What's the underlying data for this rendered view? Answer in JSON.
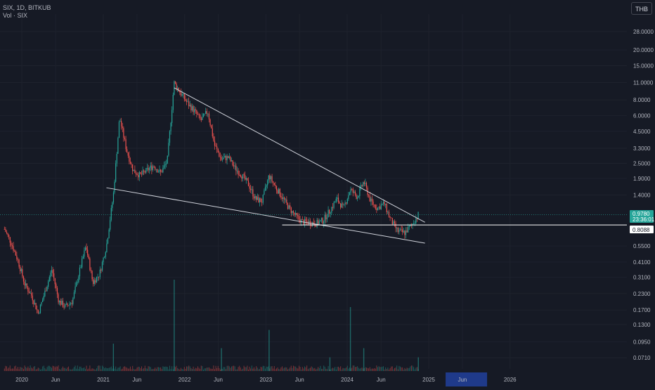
{
  "legend": {
    "symbol_line": "SIX, 1D, BITKUB",
    "volume_line": "Vol · SIX"
  },
  "currency_button": "THB",
  "price_labels": {
    "last_price": "0.9780",
    "countdown": "23:36:01",
    "line_level": "0.8088"
  },
  "colors": {
    "background": "#161a25",
    "up": "#26a69a",
    "down": "#ef5350",
    "grid": "#1e222d",
    "trendline": "#d1d4dc",
    "last_price_badge": "#26a69a"
  },
  "chart_data": {
    "type": "candlestick",
    "symbol": "SIX",
    "interval": "1D",
    "exchange": "BITKUB",
    "y_scale": "log",
    "ylim": [
      0.062,
      40
    ],
    "y_ticks": [
      "0.0710",
      "0.0950",
      "0.1300",
      "0.1700",
      "0.2300",
      "0.3100",
      "0.4100",
      "0.5500",
      "1.4000",
      "1.9000",
      "2.5000",
      "3.3000",
      "4.5000",
      "6.0000",
      "8.0000",
      "11.0000",
      "15.0000",
      "20.0000",
      "28.0000"
    ],
    "y_tick_values": [
      0.071,
      0.095,
      0.13,
      0.17,
      0.23,
      0.31,
      0.41,
      0.55,
      1.4,
      1.9,
      2.5,
      3.3,
      4.5,
      6.0,
      8.0,
      11.0,
      15.0,
      20.0,
      28.0
    ],
    "x_ticks": [
      "2020",
      "Jun",
      "2021",
      "Jun",
      "2022",
      "Jun",
      "2023",
      "Jun",
      "2024",
      "Jun",
      "2025",
      "Jun",
      "2026"
    ],
    "x_tick_dates": [
      "2020-01",
      "2020-06",
      "2021-01",
      "2021-06",
      "2022-01",
      "2022-06",
      "2023-01",
      "2023-06",
      "2024-01",
      "2024-06",
      "2025-01",
      "2025-06",
      "2026-01"
    ],
    "highlighted_x_range": [
      "2025-01",
      "2025-09"
    ],
    "price_path": [
      [
        "2019-10",
        0.75
      ],
      [
        "2019-11",
        0.58
      ],
      [
        "2019-12",
        0.42
      ],
      [
        "2020-01",
        0.27
      ],
      [
        "2020-02",
        0.22
      ],
      [
        "2020-03",
        0.16
      ],
      [
        "2020-04",
        0.24
      ],
      [
        "2020-05",
        0.36
      ],
      [
        "2020-06",
        0.2
      ],
      [
        "2020-07",
        0.18
      ],
      [
        "2020-08",
        0.2
      ],
      [
        "2020-09",
        0.34
      ],
      [
        "2020-10",
        0.55
      ],
      [
        "2020-11",
        0.28
      ],
      [
        "2020-12",
        0.33
      ],
      [
        "2021-01",
        0.55
      ],
      [
        "2021-02",
        1.4
      ],
      [
        "2021-03",
        5.8
      ],
      [
        "2021-04",
        3.2
      ],
      [
        "2021-05",
        2.2
      ],
      [
        "2021-06",
        2.0
      ],
      [
        "2021-07",
        2.2
      ],
      [
        "2021-08",
        2.4
      ],
      [
        "2021-09",
        2.1
      ],
      [
        "2021-10",
        2.6
      ],
      [
        "2021-11",
        11.0
      ],
      [
        "2021-12",
        9.0
      ],
      [
        "2022-01",
        7.5
      ],
      [
        "2022-02",
        6.5
      ],
      [
        "2022-03",
        5.5
      ],
      [
        "2022-04",
        6.5
      ],
      [
        "2022-05",
        3.5
      ],
      [
        "2022-06",
        2.7
      ],
      [
        "2022-07",
        2.8
      ],
      [
        "2022-08",
        2.3
      ],
      [
        "2022-09",
        2.0
      ],
      [
        "2022-10",
        1.7
      ],
      [
        "2022-11",
        1.3
      ],
      [
        "2022-12",
        1.25
      ],
      [
        "2023-01",
        2.0
      ],
      [
        "2023-02",
        1.6
      ],
      [
        "2023-03",
        1.35
      ],
      [
        "2023-04",
        1.1
      ],
      [
        "2023-05",
        0.95
      ],
      [
        "2023-06",
        0.85
      ],
      [
        "2023-07",
        0.85
      ],
      [
        "2023-08",
        0.83
      ],
      [
        "2023-09",
        0.88
      ],
      [
        "2023-10",
        1.05
      ],
      [
        "2023-11",
        1.3
      ],
      [
        "2023-12",
        1.1
      ],
      [
        "2024-01",
        1.55
      ],
      [
        "2024-02",
        1.35
      ],
      [
        "2024-03",
        1.8
      ],
      [
        "2024-04",
        1.25
      ],
      [
        "2024-05",
        1.1
      ],
      [
        "2024-06",
        1.2
      ],
      [
        "2024-07",
        0.88
      ],
      [
        "2024-08",
        0.72
      ],
      [
        "2024-09",
        0.7
      ],
      [
        "2024-10",
        0.8
      ],
      [
        "2024-11",
        0.98
      ]
    ],
    "volume_spikes": [
      [
        "2021-02",
        0.3
      ],
      [
        "2021-11",
        1.0
      ],
      [
        "2022-06",
        0.25
      ],
      [
        "2023-01",
        0.45
      ],
      [
        "2023-10",
        0.15
      ],
      [
        "2024-01",
        0.7
      ],
      [
        "2024-03",
        0.25
      ],
      [
        "2024-11",
        0.15
      ]
    ],
    "drawings": [
      {
        "type": "trendline",
        "from": [
          "2021-01",
          1.6
        ],
        "to": [
          "2024-12",
          0.58
        ]
      },
      {
        "type": "trendline",
        "from": [
          "2021-11",
          10.0
        ],
        "to": [
          "2024-12",
          0.85
        ]
      },
      {
        "type": "horizontal_line",
        "from": "2023-03",
        "value": 0.8088
      }
    ],
    "last_price": 0.978,
    "last_price_date": "2024-11"
  }
}
